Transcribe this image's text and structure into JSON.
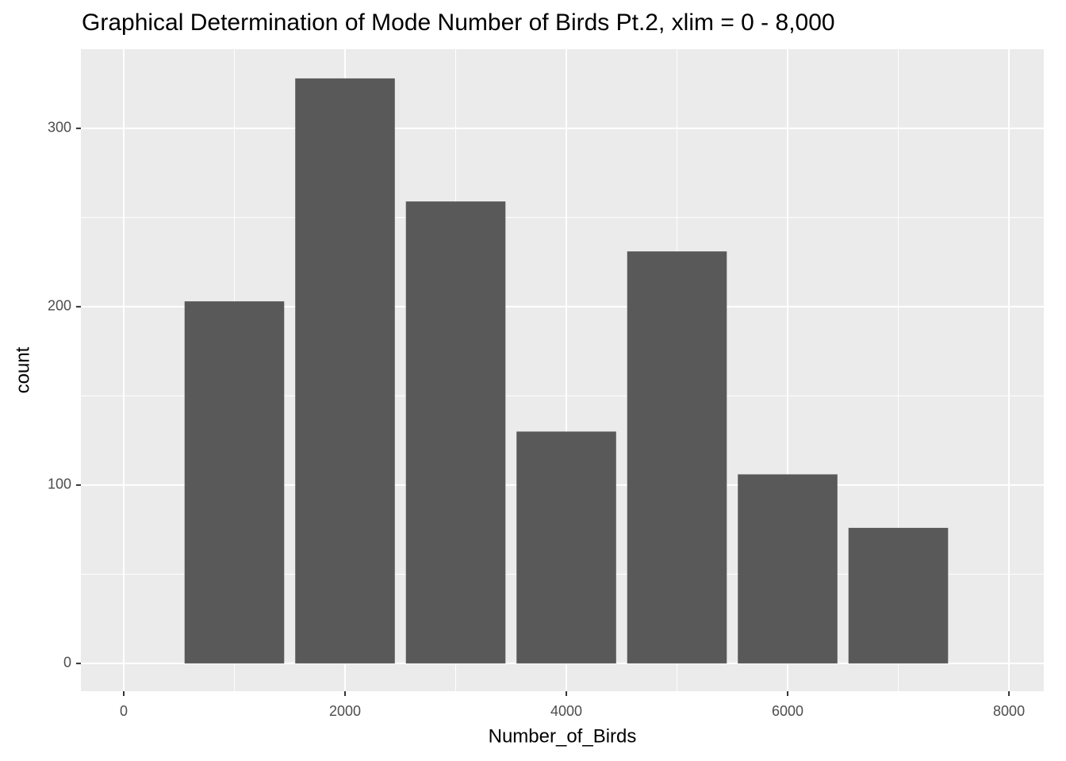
{
  "chart_data": {
    "type": "bar",
    "title": "Graphical Determination of Mode Number of Birds Pt.2, xlim = 0 - 8,000",
    "x_label": "Number_of_Birds",
    "y_label": "count",
    "x": [
      1000,
      2000,
      3000,
      4000,
      5000,
      6000,
      7000
    ],
    "values": [
      203,
      328,
      259,
      130,
      231,
      106,
      76
    ],
    "color": "#595959",
    "xlim": [
      -387,
      8315
    ],
    "xticks": [
      0,
      2000,
      4000,
      6000,
      8000
    ],
    "ylim": [
      -15.6,
      344.4
    ],
    "yticks": [
      0,
      100,
      200,
      300
    ],
    "grid": true
  }
}
